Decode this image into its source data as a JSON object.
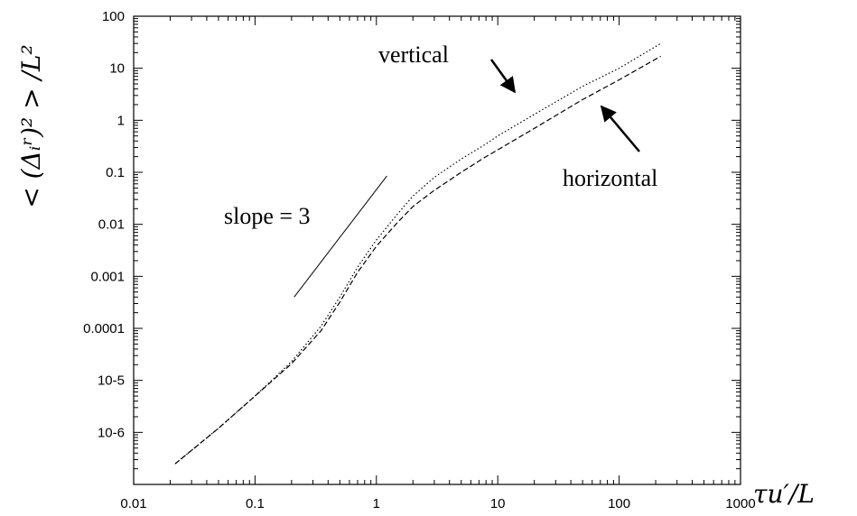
{
  "chart_data": {
    "type": "line",
    "title": "",
    "xlabel": "τu′/L",
    "ylabel": "< (Δᵢʳ)² > /L²",
    "xscale": "log",
    "yscale": "log",
    "xlim": [
      0.01,
      1000
    ],
    "ylim": [
      1e-07,
      100
    ],
    "grid": false,
    "x_tick_labels": [
      {
        "v": 0.01,
        "t": "0.01"
      },
      {
        "v": 0.1,
        "t": "0.1"
      },
      {
        "v": 1,
        "t": "1"
      },
      {
        "v": 10,
        "t": "10"
      },
      {
        "v": 100,
        "t": "100"
      },
      {
        "v": 1000,
        "t": "1000"
      }
    ],
    "y_tick_labels": [
      {
        "v": 100,
        "t": "100"
      },
      {
        "v": 10,
        "t": "10"
      },
      {
        "v": 1,
        "t": "1"
      },
      {
        "v": 0.1,
        "t": "0.1"
      },
      {
        "v": 0.01,
        "t": "0.01"
      },
      {
        "v": 0.001,
        "t": "0.001"
      },
      {
        "v": 0.0001,
        "t": "0.0001"
      },
      {
        "v": 1e-05,
        "t": "10-5"
      },
      {
        "v": 1e-06,
        "t": "10-6"
      }
    ],
    "series": [
      {
        "name": "vertical",
        "style": "dotted",
        "color": "#000000",
        "x": [
          0.022,
          0.05,
          0.1,
          0.2,
          0.35,
          0.5,
          0.7,
          1.0,
          1.5,
          2,
          3,
          5,
          8,
          10,
          20,
          50,
          100,
          220
        ],
        "y": [
          2.5e-07,
          1.2e-06,
          5e-06,
          2.3e-05,
          0.00011,
          0.0004,
          0.0015,
          0.005,
          0.016,
          0.035,
          0.08,
          0.18,
          0.35,
          0.5,
          1.3,
          4.5,
          10,
          30
        ]
      },
      {
        "name": "horizontal",
        "style": "dashed",
        "color": "#000000",
        "x": [
          0.022,
          0.05,
          0.1,
          0.2,
          0.35,
          0.5,
          0.7,
          1.0,
          1.5,
          2,
          3,
          5,
          8,
          10,
          20,
          50,
          100,
          220
        ],
        "y": [
          2.5e-07,
          1.2e-06,
          5e-06,
          2.1e-05,
          9e-05,
          0.00032,
          0.0012,
          0.0038,
          0.011,
          0.022,
          0.045,
          0.1,
          0.2,
          0.27,
          0.7,
          2.5,
          6,
          17
        ]
      }
    ],
    "reference_line": {
      "label": "slope = 3",
      "x": [
        0.21,
        1.22
      ],
      "y": [
        0.0004,
        0.085
      ]
    },
    "annotations": [
      {
        "text": "vertical",
        "arrow_to_series": "vertical"
      },
      {
        "text": "horizontal",
        "arrow_to_series": "horizontal"
      }
    ]
  }
}
